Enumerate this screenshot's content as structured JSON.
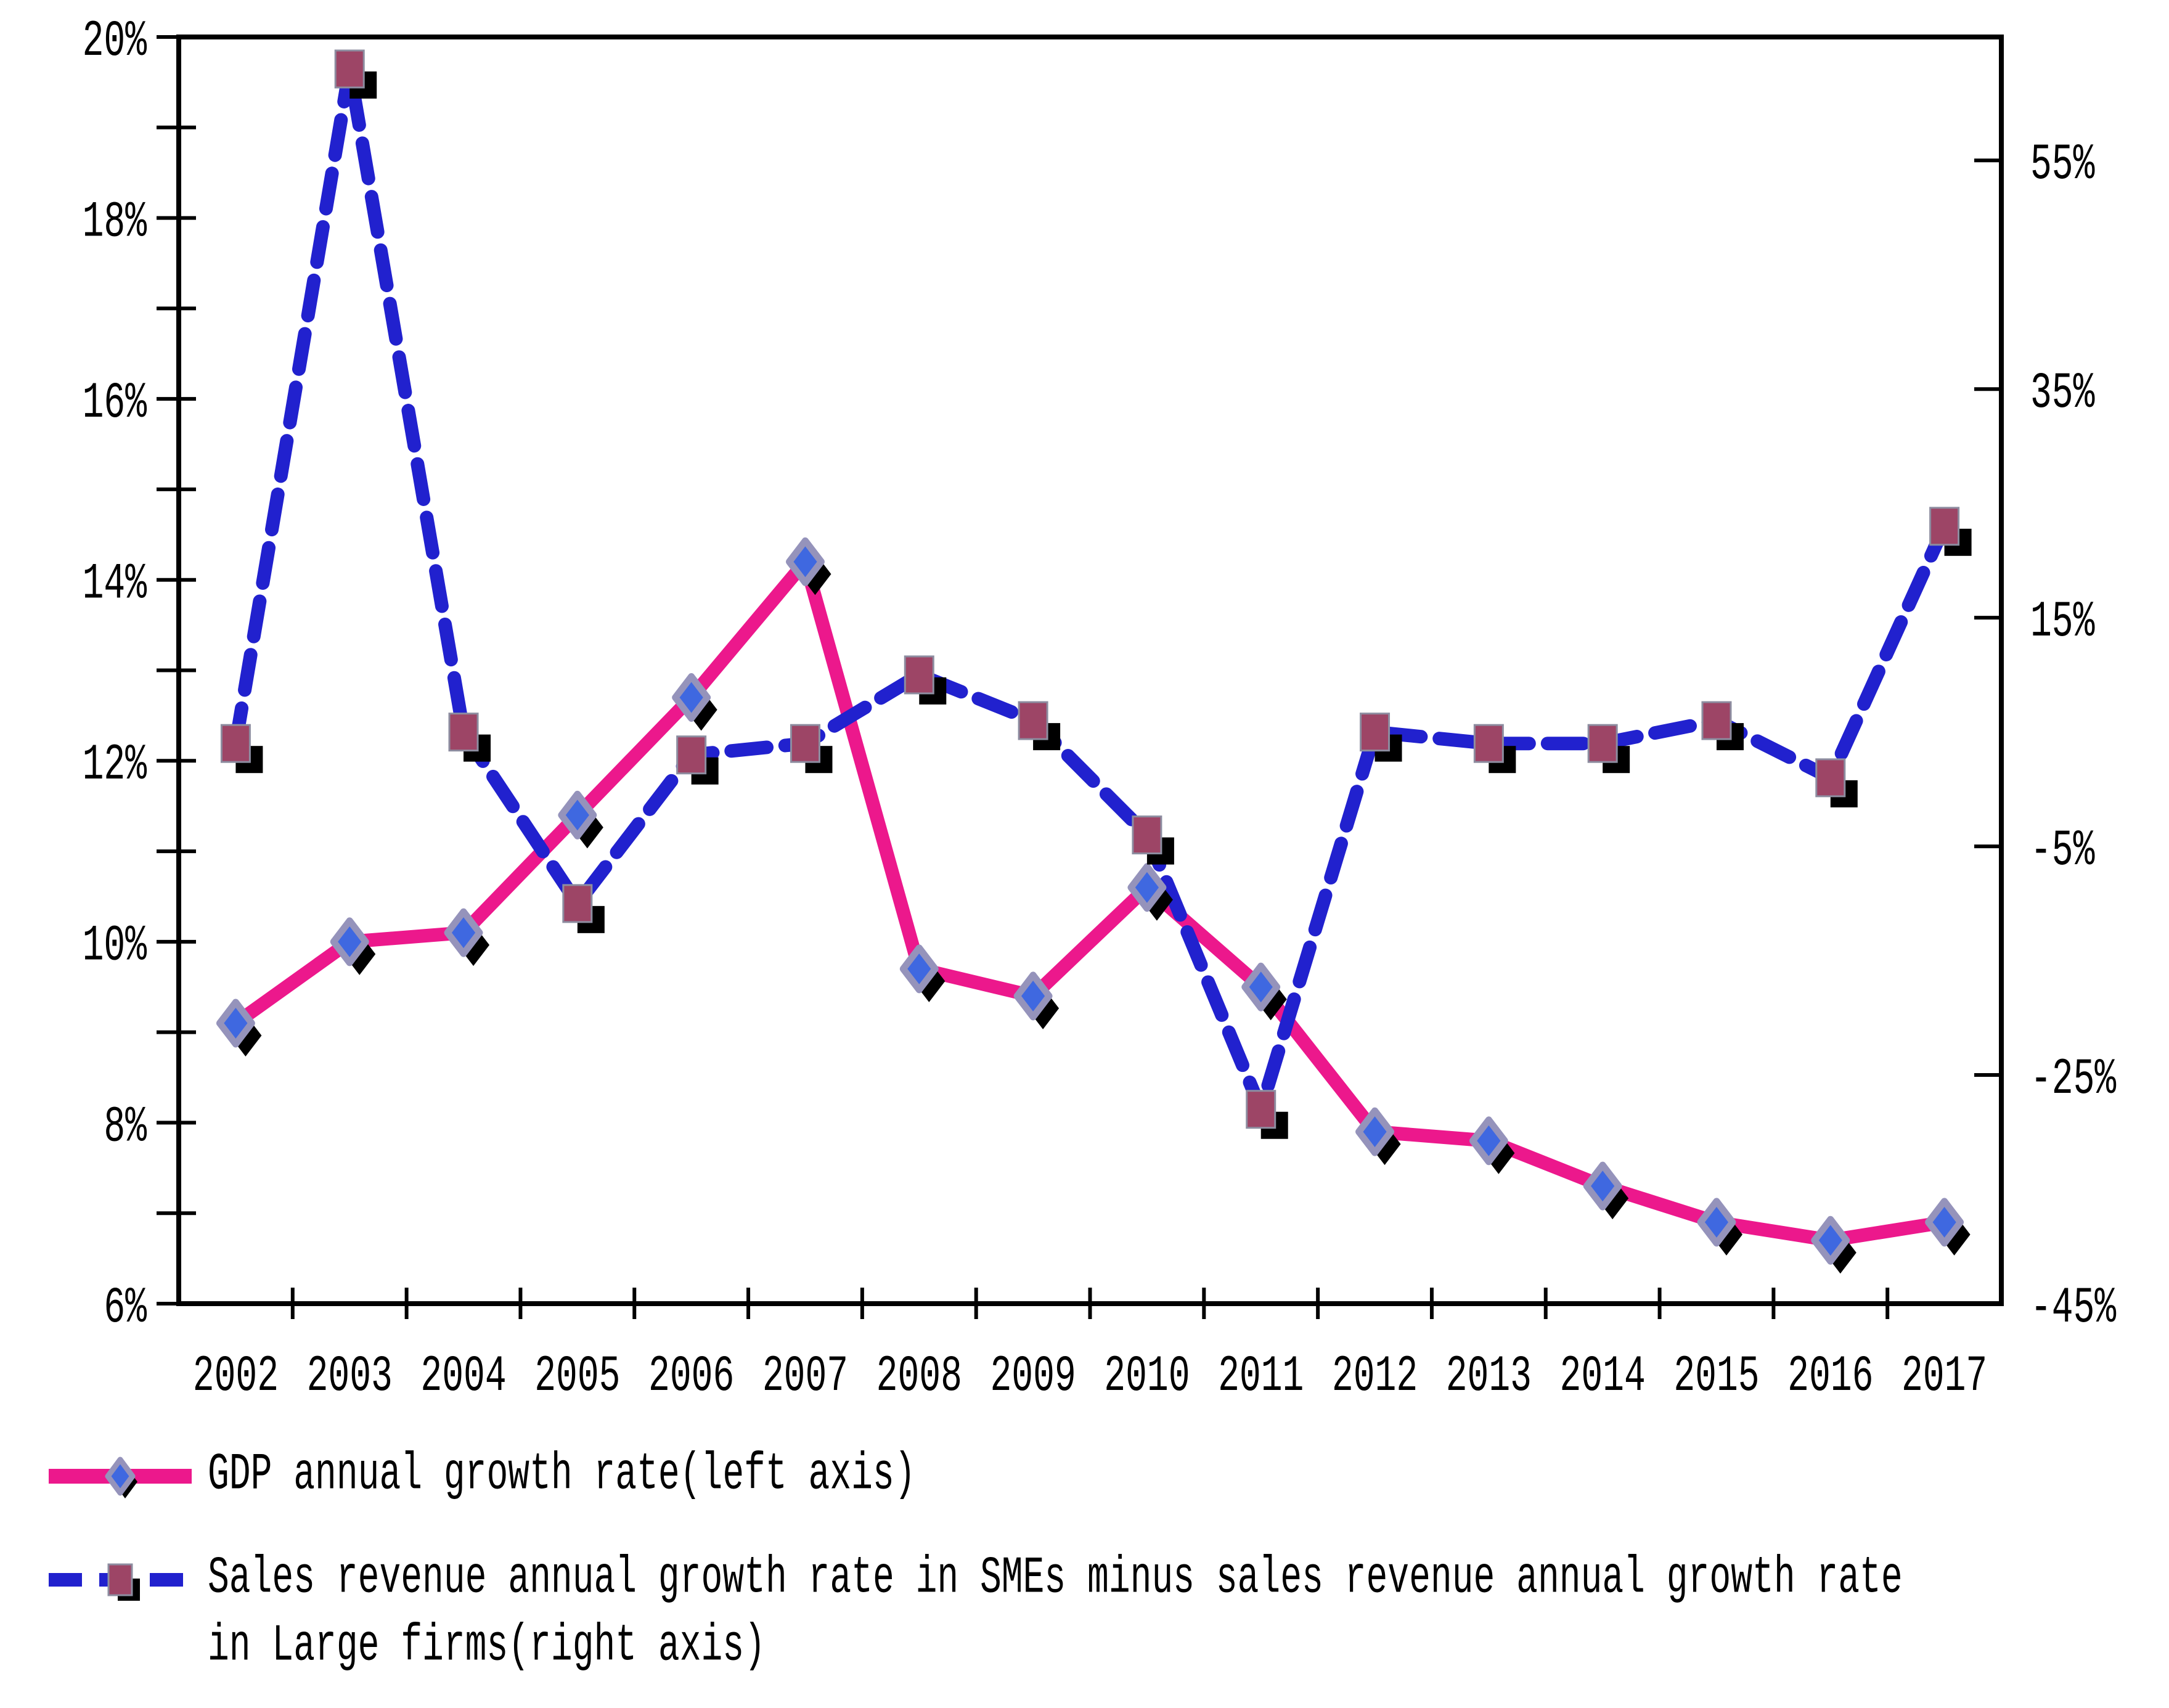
{
  "chart_data": {
    "type": "line",
    "title": "",
    "xlabel": "",
    "ylabel_left": "",
    "ylabel_right": "",
    "grid": "off",
    "legend_position": "bottom-left",
    "x_categories": [
      "2002",
      "2003",
      "2004",
      "2005",
      "2006",
      "2007",
      "2008",
      "2009",
      "2010",
      "2011",
      "2012",
      "2013",
      "2014",
      "2015",
      "2016",
      "2017"
    ],
    "series": [
      {
        "name": "GDP annual growth rate(left axis)",
        "axis": "left",
        "line_style": "solid",
        "marker": "diamond",
        "color": "#EC188C",
        "marker_fill": "#3F68E0",
        "marker_stroke": "#9593BB",
        "marker_shadow": "#000000",
        "values": [
          9.1,
          10.0,
          10.1,
          11.4,
          12.7,
          14.2,
          9.7,
          9.4,
          10.6,
          9.5,
          7.9,
          7.8,
          7.3,
          6.9,
          6.7,
          6.9
        ]
      },
      {
        "name": "Sales revenue annual growth rate in SMEs minus sales revenue annual growth rate in Large firms(right axis)",
        "axis": "right",
        "line_style": "dashed",
        "marker": "square",
        "color": "#2121CE",
        "marker_fill": "#9D4566",
        "marker_stroke": "#8D8DA0",
        "marker_shadow": "#000000",
        "values": [
          4,
          63,
          5,
          -10,
          3,
          4,
          10,
          6,
          -4,
          -28,
          5,
          4,
          4,
          6,
          1,
          23
        ]
      }
    ],
    "left_axis": {
      "min": 6,
      "max": 20,
      "minor_step": 1,
      "tick_labels": [
        "20%",
        "18%",
        "16%",
        "14%",
        "12%",
        "10%",
        "8%",
        "6%"
      ],
      "tick_values": [
        20,
        18,
        16,
        14,
        12,
        10,
        8,
        6
      ]
    },
    "right_axis": {
      "min": -45,
      "max": 65.8,
      "tick_labels": [
        "55%",
        "35%",
        "15%",
        "-5%",
        "-25%",
        "-45%"
      ],
      "tick_values": [
        55,
        35,
        15,
        -5,
        -25,
        -45
      ]
    }
  },
  "legend": {
    "item1_label": "GDP annual growth rate(left axis)",
    "item2_label": "Sales revenue annual growth rate in SMEs minus sales revenue annual growth rate in Large firms(right axis)"
  }
}
